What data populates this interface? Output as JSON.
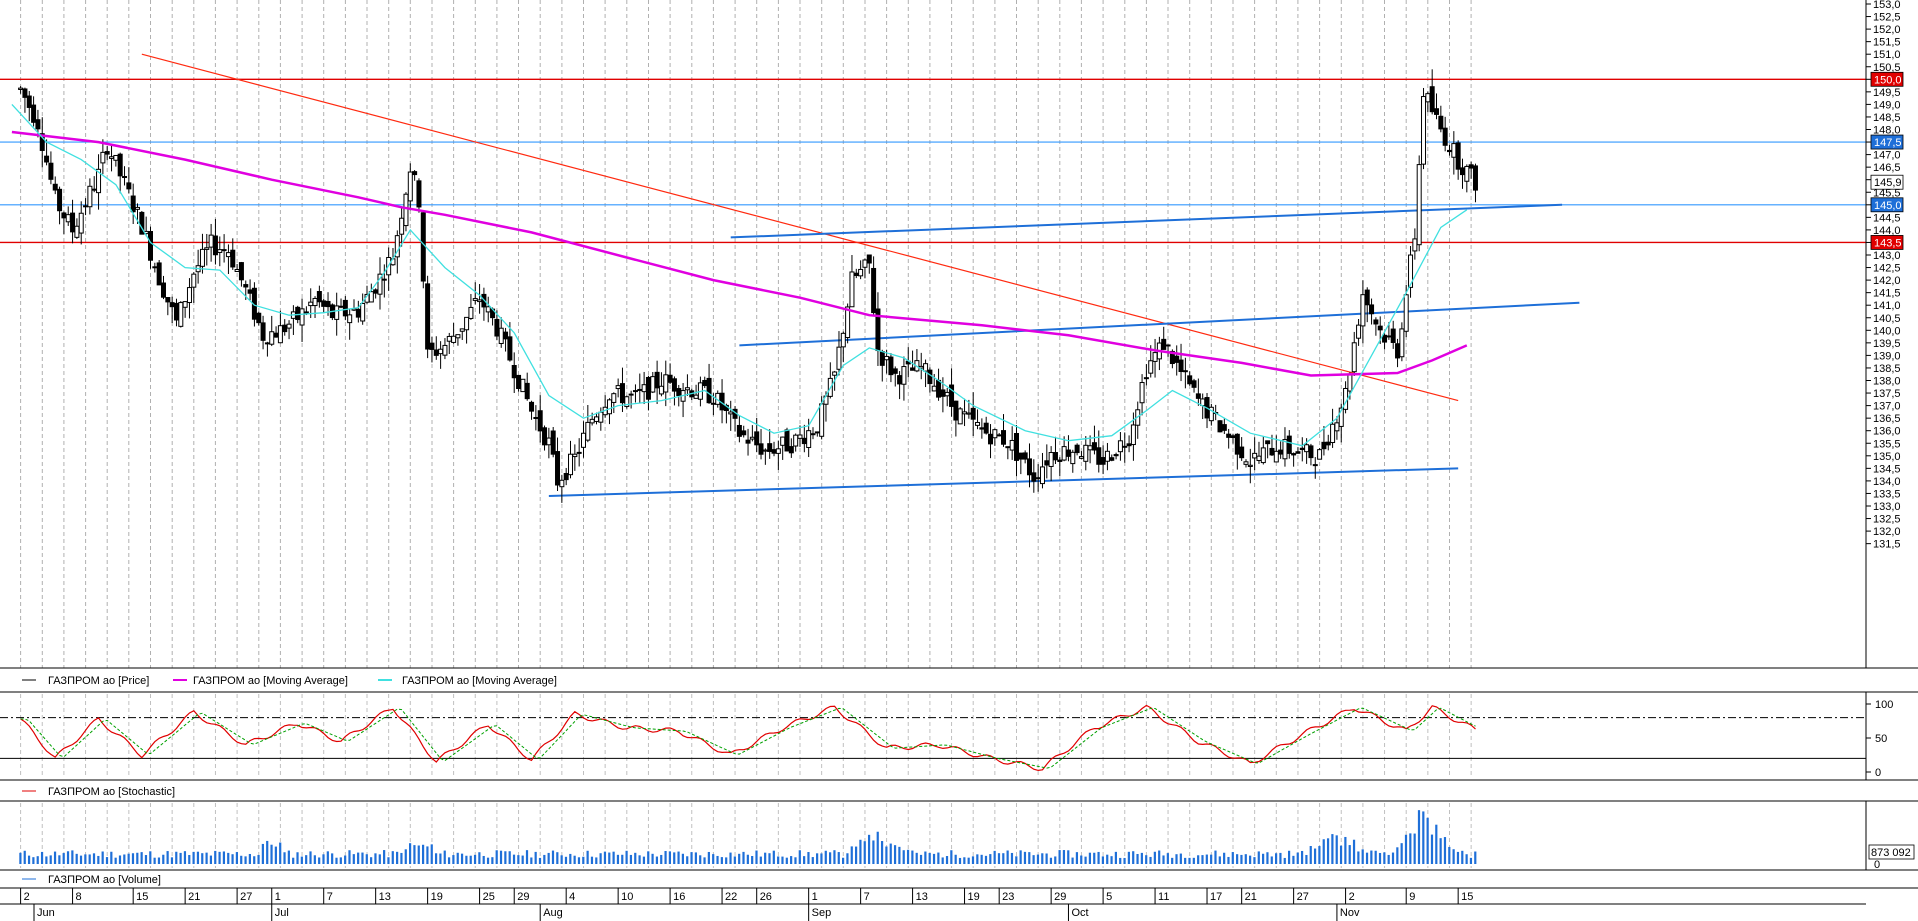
{
  "colors": {
    "price": "#000000",
    "ma_long": "#e000e0",
    "ma_short": "#40e0e0",
    "support_red": "#e00000",
    "support_blue": "#3399ff",
    "channel": "#1e6fd8",
    "trendline": "#ff2a10",
    "stoch_k": "#e00000",
    "stoch_d": "#00a000",
    "volume": "#1e6fd8"
  },
  "legend": {
    "price": "ГАЗПРОМ ао [Price]",
    "ma_long": "ГАЗПРОМ ао [Moving Average]",
    "ma_short": "ГАЗПРОМ ао [Moving Average]",
    "stochastic": "ГАЗПРОМ ао [Stochastic]",
    "volume": "ГАЗПРОМ ао [Volume]"
  },
  "price_axis": {
    "labels": [
      "153,0",
      "152,5",
      "152,0",
      "151,5",
      "151,0",
      "150,5",
      "150,0",
      "149,5",
      "149,0",
      "148,5",
      "148,0",
      "147,5",
      "147,0",
      "146,5",
      "146,0",
      "145,5",
      "145,0",
      "144,5",
      "144,0",
      "143,5",
      "143,0",
      "142,5",
      "142,0",
      "141,5",
      "141,0",
      "140,5",
      "140,0",
      "139,5",
      "139,0",
      "138,5",
      "138,0",
      "137,5",
      "137,0",
      "136,5",
      "136,0",
      "135,5",
      "135,0",
      "134,5",
      "134,0",
      "133,5",
      "133,0",
      "132,5",
      "132,0",
      "131,5"
    ],
    "tags": [
      {
        "text": "150,0",
        "value": 150.0,
        "bg": "#e00000",
        "fg": "#ffffff"
      },
      {
        "text": "147,5",
        "value": 147.5,
        "bg": "#1e6fd8",
        "fg": "#ffffff"
      },
      {
        "text": "145,9",
        "value": 145.9,
        "bg": "#ffffff",
        "fg": "#000000"
      },
      {
        "text": "145,0",
        "value": 145.0,
        "bg": "#1e6fd8",
        "fg": "#ffffff"
      },
      {
        "text": "143,5",
        "value": 143.5,
        "bg": "#e00000",
        "fg": "#ffffff"
      }
    ]
  },
  "stoch_axis": {
    "labels": [
      "100",
      "50",
      "0"
    ]
  },
  "volume_axis": {
    "label": "873 092"
  },
  "x_axis": {
    "days": [
      "2",
      "8",
      "15",
      "21",
      "27",
      "1",
      "7",
      "13",
      "19",
      "25",
      "29",
      "4",
      "10",
      "16",
      "22",
      "26",
      "1",
      "7",
      "13",
      "19",
      "23",
      "29",
      "5",
      "11",
      "17",
      "21",
      "27",
      "2",
      "9",
      "15"
    ],
    "months": [
      "Jun",
      "Jul",
      "Aug",
      "Sep",
      "Oct",
      "Nov"
    ]
  },
  "chart_data": {
    "type": "candlestick",
    "title": "",
    "ylim": [
      131.5,
      153.0
    ],
    "horizontal_levels": [
      {
        "value": 150.0,
        "color": "red"
      },
      {
        "value": 147.5,
        "color": "blue"
      },
      {
        "value": 145.0,
        "color": "blue"
      },
      {
        "value": 143.5,
        "color": "red"
      }
    ],
    "close_path": [
      [
        "Jun 1",
        149.6
      ],
      [
        "Jun 3",
        148.3
      ],
      [
        "Jun 5",
        145.2
      ],
      [
        "Jun 7",
        144.0
      ],
      [
        "Jun 10",
        146.2
      ],
      [
        "Jun 11",
        147.4
      ],
      [
        "Jun 13",
        145.8
      ],
      [
        "Jun 15",
        144.2
      ],
      [
        "Jun 17",
        142.1
      ],
      [
        "Jun 19",
        140.3
      ],
      [
        "Jun 21",
        142.3
      ],
      [
        "Jun 23",
        143.4
      ],
      [
        "Jun 25",
        143.2
      ],
      [
        "Jun 27",
        141.6
      ],
      [
        "Jun 29",
        139.8
      ],
      [
        "Jul 1",
        140.0
      ],
      [
        "Jul 3",
        140.5
      ],
      [
        "Jul 5",
        141.2
      ],
      [
        "Jul 7",
        140.6
      ],
      [
        "Jul 10",
        140.8
      ],
      [
        "Jul 12",
        141.8
      ],
      [
        "Jul 14",
        143.0
      ],
      [
        "Jul 16",
        146.5
      ],
      [
        "Jul 17",
        145.2
      ],
      [
        "Jul 18",
        139.0
      ],
      [
        "Jul 20",
        139.4
      ],
      [
        "Jul 22",
        140.2
      ],
      [
        "Jul 24",
        141.3
      ],
      [
        "Jul 26",
        140.1
      ],
      [
        "Jul 28",
        138.5
      ],
      [
        "Jul 30",
        136.8
      ],
      [
        "Aug 1",
        135.5
      ],
      [
        "Aug 2",
        134.0
      ],
      [
        "Aug 4",
        134.9
      ],
      [
        "Aug 6",
        136.5
      ],
      [
        "Aug 8",
        137.5
      ],
      [
        "Aug 11",
        137.3
      ],
      [
        "Aug 14",
        138.0
      ],
      [
        "Aug 17",
        137.7
      ],
      [
        "Aug 20",
        137.4
      ],
      [
        "Aug 23",
        135.9
      ],
      [
        "Aug 26",
        135.2
      ],
      [
        "Aug 29",
        135.5
      ],
      [
        "Sep 1",
        136.2
      ],
      [
        "Sep 3",
        138.2
      ],
      [
        "Sep 5",
        142.0
      ],
      [
        "Sep 7",
        142.6
      ],
      [
        "Sep 8",
        139.2
      ],
      [
        "Sep 10",
        138.2
      ],
      [
        "Sep 13",
        138.5
      ],
      [
        "Sep 15",
        137.7
      ],
      [
        "Sep 17",
        136.8
      ],
      [
        "Sep 20",
        136.0
      ],
      [
        "Sep 23",
        135.6
      ],
      [
        "Sep 26",
        134.2
      ],
      [
        "Sep 28",
        135.1
      ],
      [
        "Oct 1",
        135.3
      ],
      [
        "Oct 4",
        134.8
      ],
      [
        "Oct 7",
        135.8
      ],
      [
        "Oct 9",
        138.5
      ],
      [
        "Oct 11",
        139.5
      ],
      [
        "Oct 13",
        138.3
      ],
      [
        "Oct 15",
        137.2
      ],
      [
        "Oct 18",
        136.0
      ],
      [
        "Oct 21",
        134.8
      ],
      [
        "Oct 24",
        135.4
      ],
      [
        "Oct 27",
        135.1
      ],
      [
        "Oct 29",
        135.0
      ],
      [
        "Nov 1",
        137.5
      ],
      [
        "Nov 3",
        141.5
      ],
      [
        "Nov 5",
        140.0
      ],
      [
        "Nov 7",
        139.2
      ],
      [
        "Nov 9",
        143.8
      ],
      [
        "Nov 10",
        149.5
      ],
      [
        "Nov 12",
        148.0
      ],
      [
        "Nov 14",
        146.8
      ],
      [
        "Nov 16",
        145.9
      ]
    ],
    "ma_long_path": [
      [
        "Jun 1",
        147.9
      ],
      [
        "Jun 11",
        147.5
      ],
      [
        "Jun 21",
        146.8
      ],
      [
        "Jul 1",
        146.0
      ],
      [
        "Jul 11",
        145.3
      ],
      [
        "Jul 16",
        144.9
      ],
      [
        "Jul 21",
        144.6
      ],
      [
        "Jul 31",
        143.9
      ],
      [
        "Aug 11",
        142.9
      ],
      [
        "Aug 21",
        142.0
      ],
      [
        "Aug 31",
        141.3
      ],
      [
        "Sep 8",
        140.6
      ],
      [
        "Sep 21",
        140.2
      ],
      [
        "Oct 1",
        139.8
      ],
      [
        "Oct 11",
        139.2
      ],
      [
        "Oct 21",
        138.7
      ],
      [
        "Oct 29",
        138.2
      ],
      [
        "Nov 8",
        138.3
      ],
      [
        "Nov 12",
        138.8
      ],
      [
        "Nov 16",
        139.4
      ]
    ],
    "ma_short_path": [
      [
        "Jun 1",
        149.0
      ],
      [
        "Jun 5",
        147.5
      ],
      [
        "Jun 9",
        146.8
      ],
      [
        "Jun 13",
        145.8
      ],
      [
        "Jun 17",
        143.5
      ],
      [
        "Jun 21",
        142.5
      ],
      [
        "Jun 25",
        142.4
      ],
      [
        "Jun 29",
        141.0
      ],
      [
        "Jul 3",
        140.6
      ],
      [
        "Jul 7",
        140.7
      ],
      [
        "Jul 11",
        140.9
      ],
      [
        "Jul 14",
        142.3
      ],
      [
        "Jul 17",
        144.0
      ],
      [
        "Jul 21",
        142.5
      ],
      [
        "Jul 25",
        141.4
      ],
      [
        "Jul 29",
        139.9
      ],
      [
        "Aug 2",
        137.4
      ],
      [
        "Aug 6",
        136.5
      ],
      [
        "Aug 10",
        137.0
      ],
      [
        "Aug 15",
        137.2
      ],
      [
        "Aug 20",
        137.6
      ],
      [
        "Aug 24",
        136.6
      ],
      [
        "Aug 28",
        135.9
      ],
      [
        "Sep 1",
        136.2
      ],
      [
        "Sep 5",
        138.6
      ],
      [
        "Sep 8",
        139.3
      ],
      [
        "Sep 12",
        138.9
      ],
      [
        "Sep 16",
        138.0
      ],
      [
        "Sep 20",
        137.0
      ],
      [
        "Sep 26",
        136.0
      ],
      [
        "Oct 1",
        135.6
      ],
      [
        "Oct 6",
        135.8
      ],
      [
        "Oct 10",
        136.8
      ],
      [
        "Oct 13",
        137.6
      ],
      [
        "Oct 17",
        136.9
      ],
      [
        "Oct 22",
        135.9
      ],
      [
        "Oct 28",
        135.4
      ],
      [
        "Nov 1",
        136.5
      ],
      [
        "Nov 5",
        139.0
      ],
      [
        "Nov 9",
        141.5
      ],
      [
        "Nov 13",
        144.1
      ],
      [
        "Nov 16",
        144.8
      ]
    ],
    "trendlines": [
      {
        "name": "red-descending",
        "color": "red",
        "from": [
          "Jun 16",
          151.0
        ],
        "to": [
          "Nov 15",
          137.2
        ]
      },
      {
        "name": "upper-channel",
        "color": "blue",
        "from": [
          "Aug 23",
          143.7
        ],
        "to": [
          "Nov 27",
          145.0
        ]
      },
      {
        "name": "middle-channel",
        "color": "blue",
        "from": [
          "Aug 24",
          139.4
        ],
        "to": [
          "Nov 29",
          141.1
        ]
      },
      {
        "name": "lower-channel",
        "color": "blue",
        "from": [
          "Aug 2",
          133.4
        ],
        "to": [
          "Nov 15",
          134.5
        ]
      }
    ],
    "stochastic": {
      "ylim": [
        0,
        100
      ],
      "levels": [
        80,
        20
      ],
      "k_path": [
        [
          "Jun 1",
          78
        ],
        [
          "Jun 5",
          20
        ],
        [
          "Jun 10",
          78
        ],
        [
          "Jun 15",
          25
        ],
        [
          "Jun 21",
          88
        ],
        [
          "Jun 27",
          40
        ],
        [
          "Jul 3",
          72
        ],
        [
          "Jul 8",
          45
        ],
        [
          "Jul 14",
          95
        ],
        [
          "Jul 19",
          15
        ],
        [
          "Jul 25",
          70
        ],
        [
          "Jul 30",
          18
        ],
        [
          "Aug 4",
          85
        ],
        [
          "Aug 10",
          65
        ],
        [
          "Aug 16",
          60
        ],
        [
          "Aug 22",
          25
        ],
        [
          "Aug 28",
          65
        ],
        [
          "Sep 3",
          95
        ],
        [
          "Sep 9",
          35
        ],
        [
          "Sep 15",
          40
        ],
        [
          "Sep 21",
          20
        ],
        [
          "Sep 27",
          5
        ],
        [
          "Oct 3",
          65
        ],
        [
          "Oct 9",
          95
        ],
        [
          "Oct 15",
          45
        ],
        [
          "Oct 21",
          12
        ],
        [
          "Oct 27",
          55
        ],
        [
          "Nov 2",
          95
        ],
        [
          "Nov 8",
          60
        ],
        [
          "Nov 11",
          95
        ],
        [
          "Nov 16",
          62
        ]
      ]
    },
    "volume": {
      "spikes": [
        [
          "Sep 8",
          "high"
        ],
        [
          "Oct 31",
          "high"
        ],
        [
          "Nov 10",
          "very high"
        ]
      ]
    }
  }
}
